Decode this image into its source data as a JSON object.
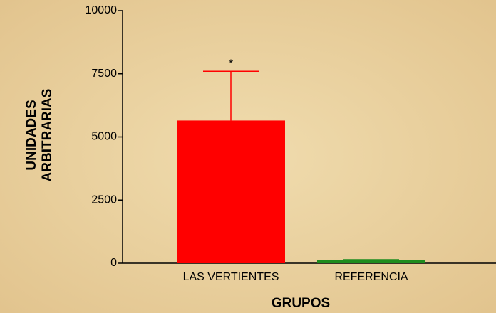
{
  "chart_data": {
    "type": "bar",
    "ylabel": [
      "UNIDADES",
      "ARBITRARIAS"
    ],
    "xlabel": "GRUPOS",
    "categories": [
      "LAS VERTIENTES",
      "REFERENCIA"
    ],
    "values": [
      5650,
      120
    ],
    "errors": [
      1950,
      20
    ],
    "colors": [
      "#ff0000",
      "#1e8c1e"
    ],
    "annotation": "*",
    "ylim": [
      0,
      10000
    ],
    "yticks": [
      0,
      2500,
      5000,
      7500,
      10000
    ]
  }
}
